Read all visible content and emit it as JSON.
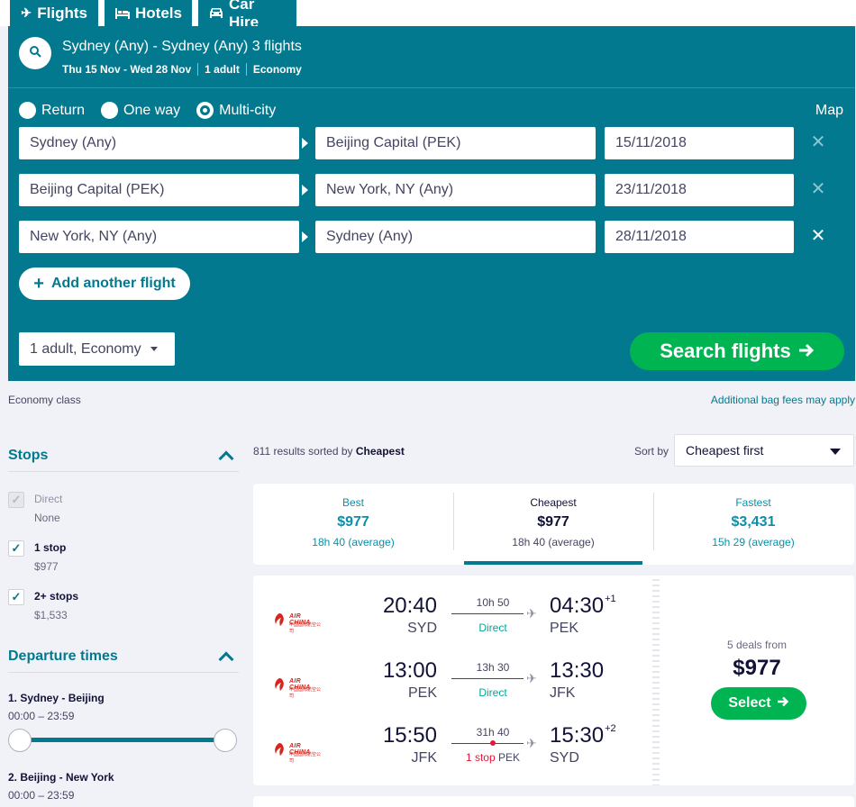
{
  "tabs": [
    {
      "label": "Flights",
      "icon": "plane-icon",
      "active": true
    },
    {
      "label": "Hotels",
      "icon": "bed-icon",
      "active": false
    },
    {
      "label": "Car Hire",
      "icon": "car-icon",
      "active": false
    }
  ],
  "search_summary": {
    "title": "Sydney (Any) - Sydney (Any) 3 flights",
    "dates": "Thu 15 Nov - Wed 28 Nov",
    "travellers": "1 adult",
    "cabin": "Economy"
  },
  "trip_types": [
    {
      "label": "Return",
      "selected": false
    },
    {
      "label": "One way",
      "selected": false
    },
    {
      "label": "Multi-city",
      "selected": true
    }
  ],
  "map_label": "Map",
  "legs": [
    {
      "from": "Sydney (Any)",
      "to": "Beijing Capital (PEK)",
      "date": "15/11/2018",
      "remove": "✕"
    },
    {
      "from": "Beijing Capital (PEK)",
      "to": "New York, NY (Any)",
      "date": "23/11/2018",
      "remove": "✕"
    },
    {
      "from": "New York, NY (Any)",
      "to": "Sydney (Any)",
      "date": "28/11/2018",
      "remove": "✕"
    }
  ],
  "add_flight": "Add another flight",
  "passengers": "1 adult, Economy",
  "search_button": "Search flights",
  "economy_class": "Economy class",
  "bag_fees": "Additional bag fees may apply",
  "filters": {
    "stops_title": "Stops",
    "stops": [
      {
        "label": "Direct",
        "price": "None",
        "checked": true,
        "disabled": true
      },
      {
        "label": "1 stop",
        "price": "$977",
        "checked": true,
        "disabled": false
      },
      {
        "label": "2+ stops",
        "price": "$1,533",
        "checked": true,
        "disabled": false
      }
    ],
    "departure_title": "Departure times",
    "departure_legs": [
      {
        "title": "1. Sydney - Beijing",
        "range": "00:00 – 23:59"
      },
      {
        "title": "2. Beijing - New York",
        "range": "00:00 – 23:59"
      }
    ]
  },
  "results": {
    "count_prefix": "811 results sorted by",
    "sorted_by": "Cheapest",
    "sort_label": "Sort by",
    "sort_value": "Cheapest first"
  },
  "summary_tabs": [
    {
      "label": "Best",
      "price": "$977",
      "avg": "18h 40 (average)"
    },
    {
      "label": "Cheapest",
      "price": "$977",
      "avg": "18h 40 (average)"
    },
    {
      "label": "Fastest",
      "price": "$3,431",
      "avg": "15h 29 (average)"
    }
  ],
  "itinerary": {
    "airline": "AIR CHINA",
    "airline_sub": "中国国际航空公司",
    "segments": [
      {
        "dep_time": "20:40",
        "dep_code": "SYD",
        "arr_time": "04:30",
        "arr_plus": "+1",
        "arr_code": "PEK",
        "duration": "10h 50",
        "stops": "Direct",
        "via": ""
      },
      {
        "dep_time": "13:00",
        "dep_code": "PEK",
        "arr_time": "13:30",
        "arr_plus": "",
        "arr_code": "JFK",
        "duration": "13h 30",
        "stops": "Direct",
        "via": ""
      },
      {
        "dep_time": "15:50",
        "dep_code": "JFK",
        "arr_time": "15:30",
        "arr_plus": "+2",
        "arr_code": "SYD",
        "duration": "31h 40",
        "stops": "1 stop",
        "via": "PEK"
      }
    ],
    "deals": "5 deals from",
    "price": "$977",
    "select": "Select"
  },
  "colors": {
    "teal": "#02798e",
    "green": "#00b551",
    "link": "#0b8fa8",
    "red": "#e5173b"
  }
}
